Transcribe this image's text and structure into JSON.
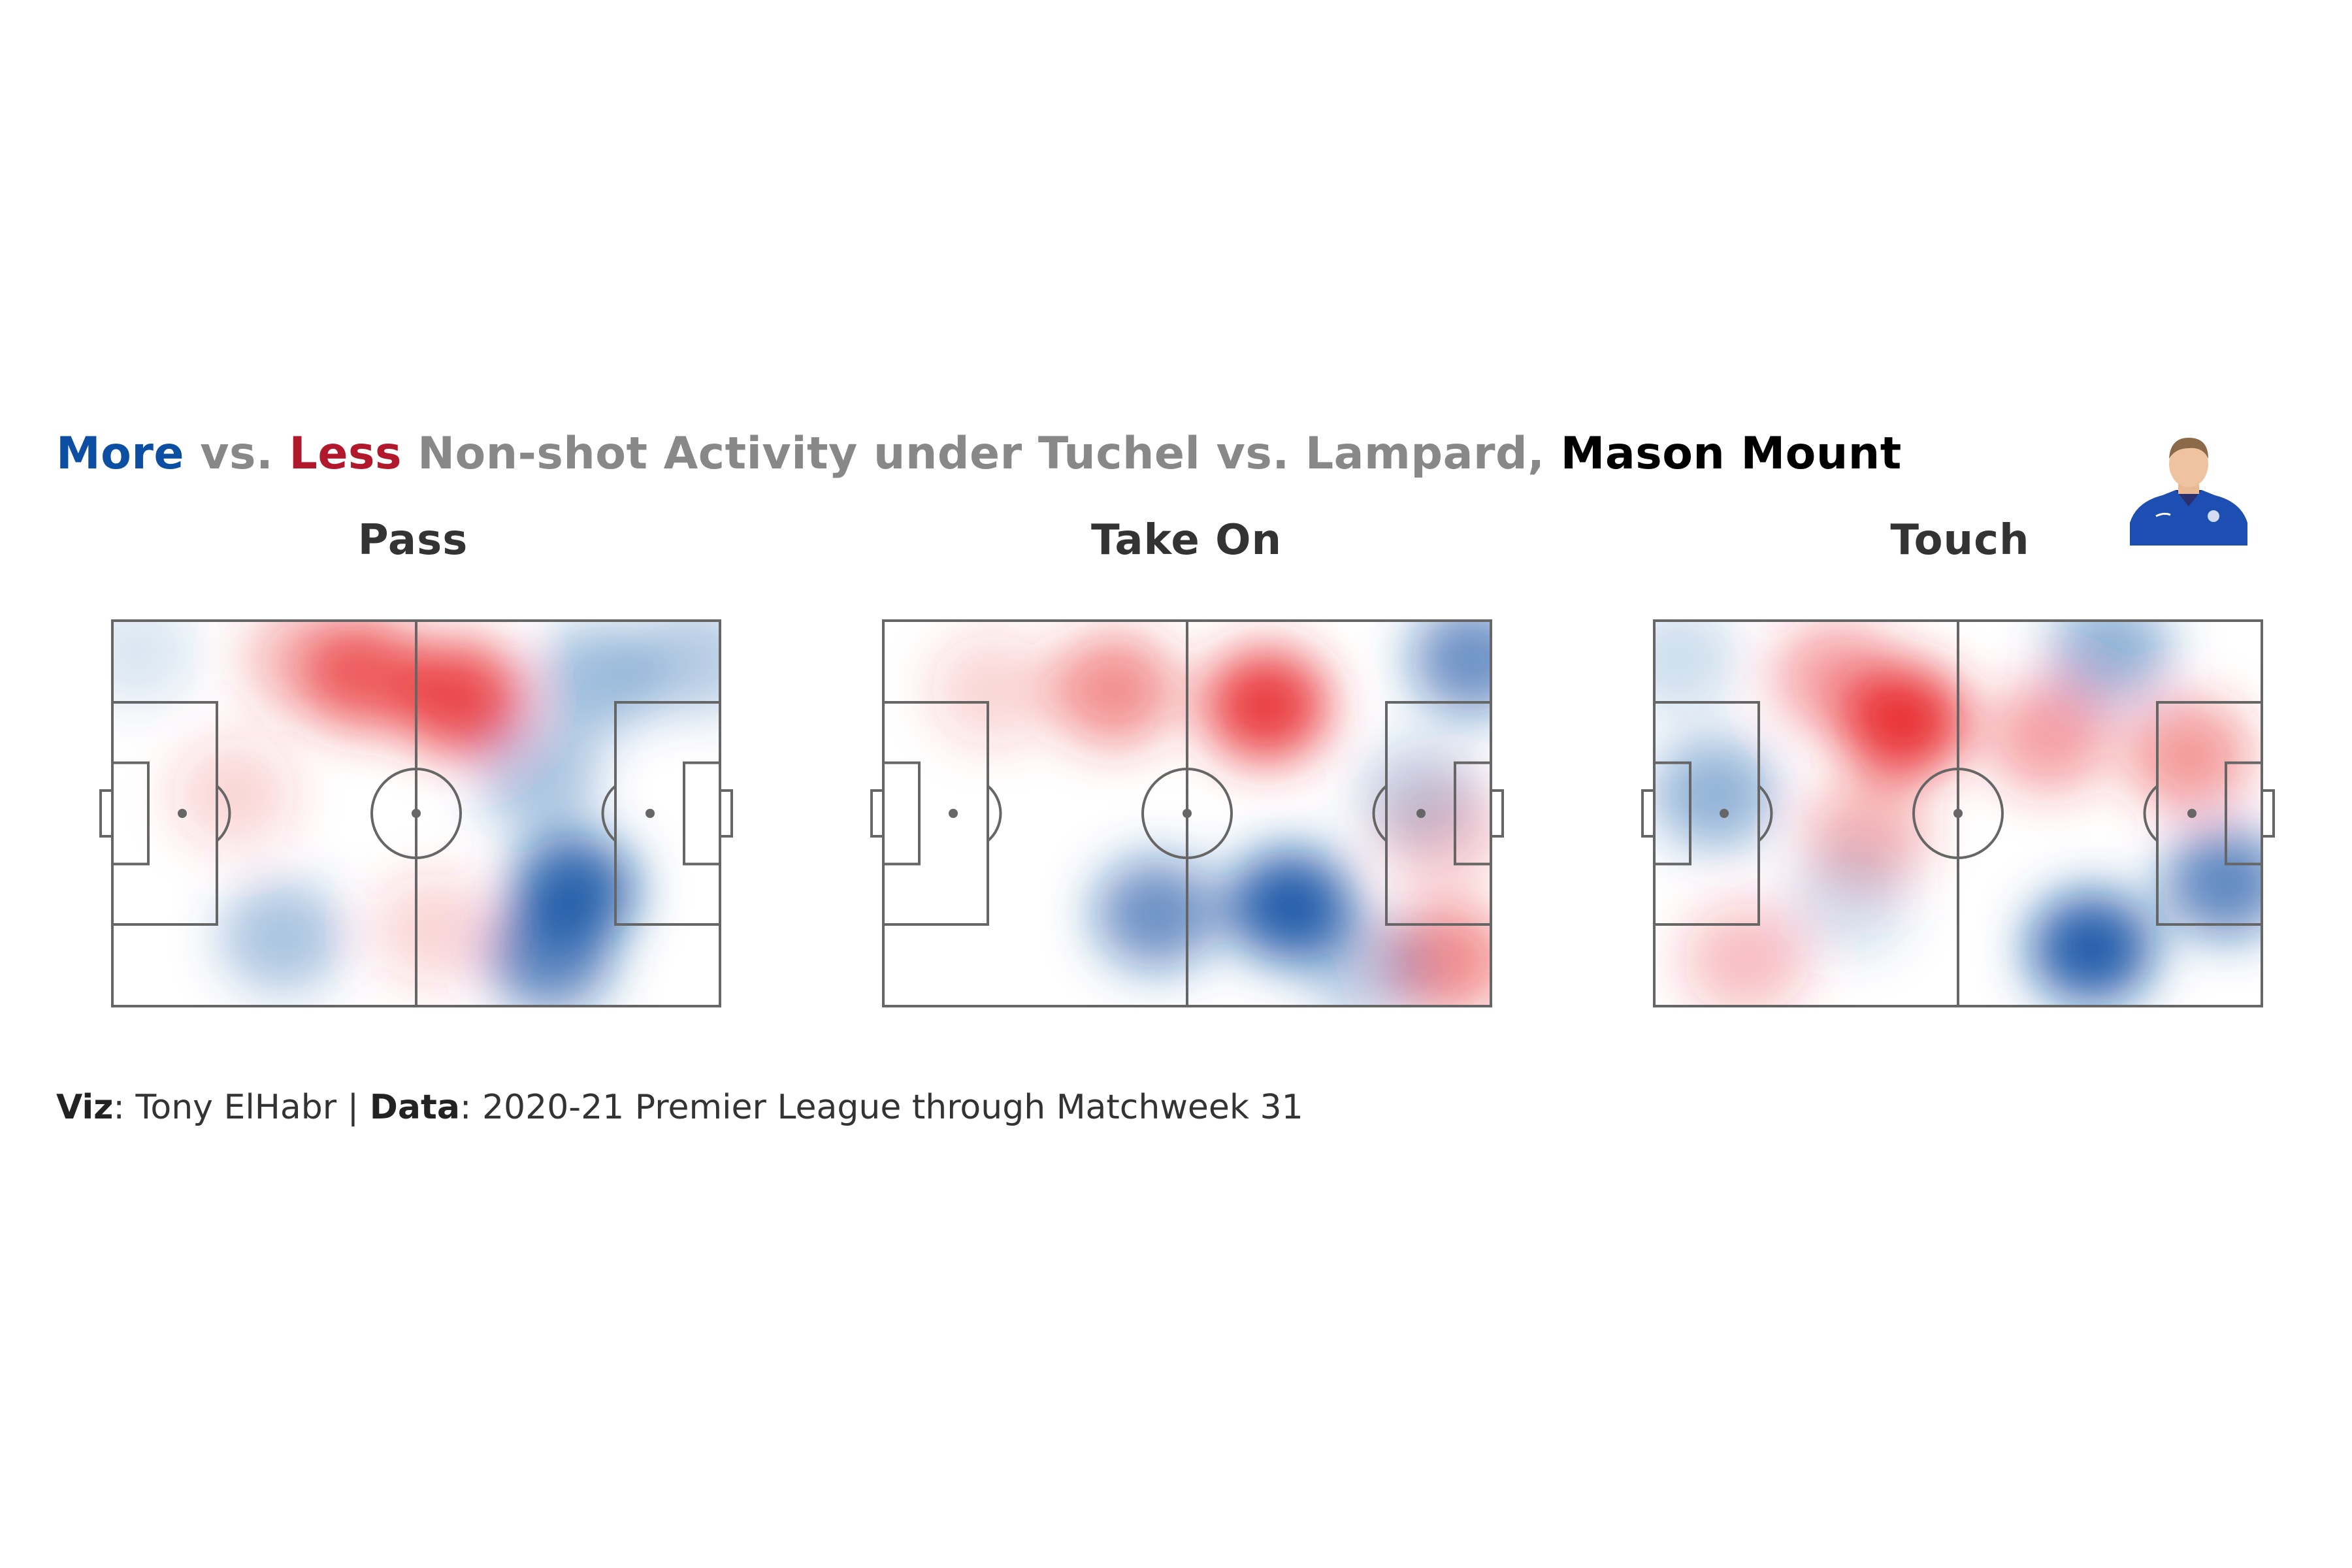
{
  "title": {
    "more": "More",
    "vs1": " vs. ",
    "less": "Less",
    "rest": " Non-shot Activity under Tuchel vs. Lampard, ",
    "player": "Mason Mount"
  },
  "colors": {
    "more": "#0b4ea2",
    "less": "#e8282c",
    "line": "#666666",
    "title_grey": "#888888"
  },
  "caption": {
    "viz_label": "Viz",
    "viz_value": ": Tony ElHabr | ",
    "data_label": "Data",
    "data_value": ": 2020-21 Premier League through Matchweek 31"
  },
  "player_image": "player-photo-icon",
  "chart_data": {
    "type": "heatmap",
    "description_scale": "positive = more (blue), negative = less (red); x 0-100 pitch length, y 0-100 pitch width",
    "panels": [
      {
        "title": "Pass",
        "blobs": [
          {
            "x": 42,
            "y": 14,
            "v": -0.75
          },
          {
            "x": 57,
            "y": 20,
            "v": -0.9
          },
          {
            "x": 32,
            "y": 10,
            "v": -0.35
          },
          {
            "x": 20,
            "y": 45,
            "v": -0.2
          },
          {
            "x": 53,
            "y": 80,
            "v": -0.2
          },
          {
            "x": 76,
            "y": 70,
            "v": 0.9
          },
          {
            "x": 72,
            "y": 87,
            "v": 0.7
          },
          {
            "x": 80,
            "y": 15,
            "v": 0.4
          },
          {
            "x": 96,
            "y": 10,
            "v": 0.3
          },
          {
            "x": 28,
            "y": 82,
            "v": 0.35
          },
          {
            "x": 4,
            "y": 8,
            "v": 0.15
          },
          {
            "x": 70,
            "y": 40,
            "v": 0.35
          }
        ]
      },
      {
        "title": "Take On",
        "blobs": [
          {
            "x": 63,
            "y": 22,
            "v": -0.95
          },
          {
            "x": 38,
            "y": 18,
            "v": -0.55
          },
          {
            "x": 18,
            "y": 18,
            "v": -0.2
          },
          {
            "x": 93,
            "y": 88,
            "v": -0.55
          },
          {
            "x": 92,
            "y": 55,
            "v": -0.25
          },
          {
            "x": 67,
            "y": 74,
            "v": 0.95
          },
          {
            "x": 45,
            "y": 76,
            "v": 0.65
          },
          {
            "x": 97,
            "y": 10,
            "v": 0.65
          },
          {
            "x": 88,
            "y": 45,
            "v": 0.25
          },
          {
            "x": 80,
            "y": 90,
            "v": 0.3
          }
        ]
      },
      {
        "title": "Touch",
        "blobs": [
          {
            "x": 41,
            "y": 26,
            "v": -1.0
          },
          {
            "x": 30,
            "y": 15,
            "v": -0.45
          },
          {
            "x": 65,
            "y": 30,
            "v": -0.45
          },
          {
            "x": 88,
            "y": 35,
            "v": -0.5
          },
          {
            "x": 15,
            "y": 88,
            "v": -0.3
          },
          {
            "x": 35,
            "y": 55,
            "v": -0.35
          },
          {
            "x": 72,
            "y": 85,
            "v": 0.95
          },
          {
            "x": 94,
            "y": 68,
            "v": 0.7
          },
          {
            "x": 10,
            "y": 45,
            "v": 0.45
          },
          {
            "x": 75,
            "y": 8,
            "v": 0.45
          },
          {
            "x": 4,
            "y": 10,
            "v": 0.2
          },
          {
            "x": 32,
            "y": 72,
            "v": 0.2
          }
        ]
      }
    ]
  }
}
